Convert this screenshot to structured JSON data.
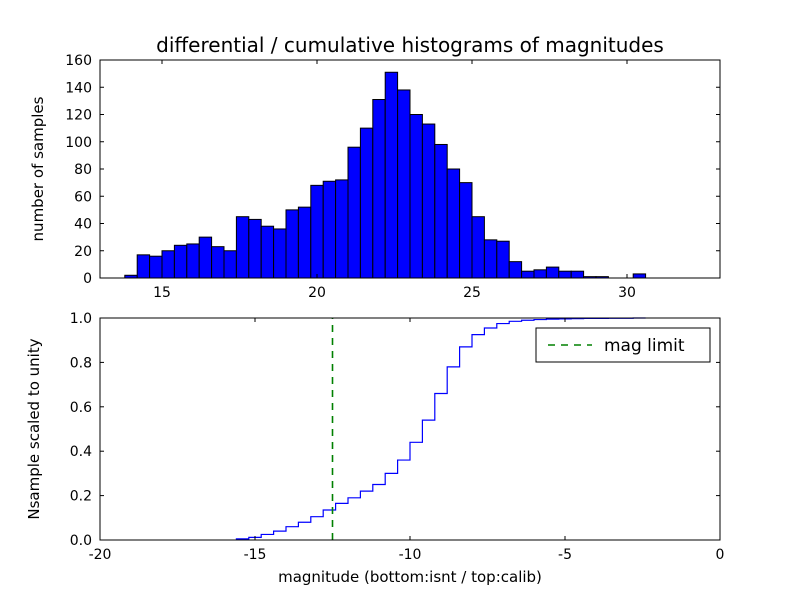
{
  "figure": {
    "background": "#ffffff"
  },
  "chart_data": [
    {
      "type": "bar",
      "subtype": "histogram",
      "title": "differential / cumulative histograms of magnitudes",
      "xlabel": "",
      "ylabel": "number of samples",
      "xlim": [
        13,
        33
      ],
      "ylim": [
        0,
        160
      ],
      "xticks": [
        15,
        20,
        25,
        30
      ],
      "xtick_labels": [
        "15",
        "20",
        "25",
        "30"
      ],
      "yticks": [
        0,
        20,
        40,
        60,
        80,
        100,
        120,
        140,
        160
      ],
      "ytick_labels": [
        "0",
        "20",
        "40",
        "60",
        "80",
        "100",
        "120",
        "140",
        "160"
      ],
      "bin_start": 13.8,
      "bin_width": 0.4,
      "counts": [
        2,
        17,
        16,
        20,
        24,
        25,
        30,
        23,
        20,
        45,
        43,
        38,
        36,
        50,
        52,
        68,
        71,
        72,
        96,
        110,
        131,
        151,
        138,
        120,
        113,
        98,
        80,
        70,
        45,
        28,
        27,
        12,
        5,
        6,
        8,
        5,
        5,
        1,
        1,
        0,
        0,
        3
      ],
      "bar_fill": "#0000ff",
      "bar_edge": "#000000",
      "grid": false
    },
    {
      "type": "line",
      "subtype": "cumulative-step",
      "title": "",
      "xlabel": "magnitude (bottom:isnt / top:calib)",
      "ylabel": "Nsample scaled to unity",
      "xlim": [
        -20,
        0
      ],
      "ylim": [
        0,
        1.0
      ],
      "xticks": [
        -20,
        -15,
        -10,
        -5,
        0
      ],
      "xtick_labels": [
        "-20",
        "-15",
        "-10",
        "-5",
        "0"
      ],
      "yticks": [
        0.0,
        0.2,
        0.4,
        0.6,
        0.8,
        1.0
      ],
      "ytick_labels": [
        "0.0",
        "0.2",
        "0.4",
        "0.6",
        "0.8",
        "1.0"
      ],
      "step_start": -15.6,
      "step_width": 0.4,
      "cum_values": [
        0.005,
        0.012,
        0.025,
        0.04,
        0.06,
        0.08,
        0.105,
        0.135,
        0.165,
        0.19,
        0.22,
        0.25,
        0.3,
        0.36,
        0.44,
        0.54,
        0.66,
        0.78,
        0.87,
        0.925,
        0.955,
        0.975,
        0.985,
        0.99,
        0.993,
        0.995,
        0.996,
        0.997,
        0.998,
        0.998,
        0.999,
        0.999,
        1.0
      ],
      "line_color": "#0000ff",
      "mag_limit_x": -12.5,
      "limit_color": "#008000",
      "legend": {
        "label": "mag limit",
        "position": "upper right"
      },
      "grid": false
    }
  ]
}
